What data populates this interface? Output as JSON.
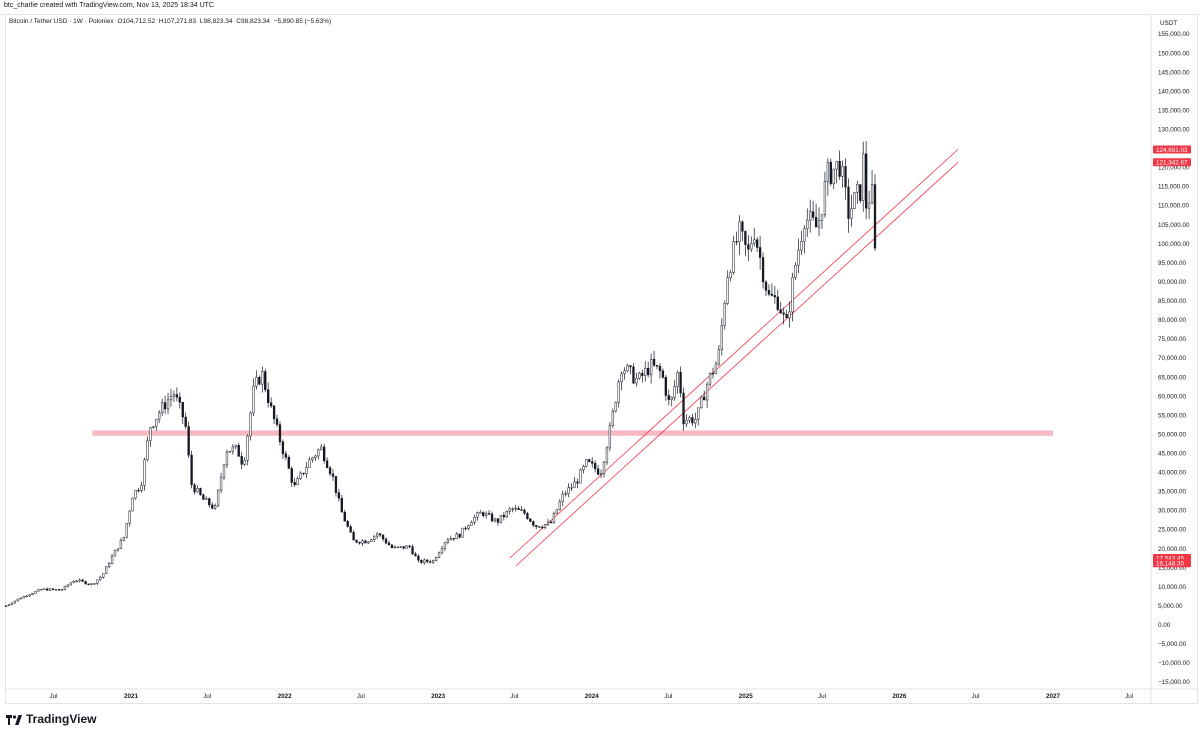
{
  "header": {
    "text": "btc_charlie created with TradingView.com, Nov 13, 2025 18:34 UTC"
  },
  "legend": {
    "symbol": "Bitcoin / Tether USD · 1W · Poloniex",
    "open": "O104,712.52",
    "high": "H107,271.83",
    "low": "L98,823.34",
    "close": "C98,823.34",
    "change": "−5,890.85 (−5.63%)"
  },
  "footer": {
    "brand": "TradingView"
  },
  "colors": {
    "candle": "#131722",
    "trend": "#f23645",
    "zone": "#f7a1ad",
    "badge": "#f23645",
    "grid": "#e0e3eb"
  },
  "chart_data": {
    "type": "candlestick",
    "title": "Bitcoin / Tether USD · 1W · Poloniex",
    "currency": "USDT",
    "ylim": [
      -15000,
      155000
    ],
    "y_ticks": [
      "155,000.00",
      "150,000.00",
      "145,000.00",
      "140,000.00",
      "135,000.00",
      "130,000.00",
      "125,000.00",
      "120,000.00",
      "115,000.00",
      "110,000.00",
      "105,000.00",
      "100,000.00",
      "95,000.00",
      "90,000.00",
      "85,000.00",
      "80,000.00",
      "75,000.00",
      "70,000.00",
      "65,000.00",
      "60,000.00",
      "55,000.00",
      "50,000.00",
      "45,000.00",
      "40,000.00",
      "35,000.00",
      "30,000.00",
      "25,000.00",
      "20,000.00",
      "15,000.00",
      "10,000.00",
      "5,000.00",
      "0.00",
      "−5,000.00",
      "−10,000.00",
      "−15,000.00"
    ],
    "x_ticks": [
      {
        "label": "Jul",
        "date": "2020-07-01",
        "year": false
      },
      {
        "label": "2021",
        "date": "2021-01-01",
        "year": true
      },
      {
        "label": "Jul",
        "date": "2021-07-01",
        "year": false
      },
      {
        "label": "2022",
        "date": "2022-01-01",
        "year": true
      },
      {
        "label": "Jul",
        "date": "2022-07-01",
        "year": false
      },
      {
        "label": "2023",
        "date": "2023-01-01",
        "year": true
      },
      {
        "label": "Jul",
        "date": "2023-07-01",
        "year": false
      },
      {
        "label": "2024",
        "date": "2024-01-01",
        "year": true
      },
      {
        "label": "Jul",
        "date": "2024-07-01",
        "year": false
      },
      {
        "label": "2025",
        "date": "2025-01-01",
        "year": true
      },
      {
        "label": "Jul",
        "date": "2025-07-01",
        "year": false
      },
      {
        "label": "2026",
        "date": "2026-01-01",
        "year": true
      },
      {
        "label": "Jul",
        "date": "2026-07-01",
        "year": false
      },
      {
        "label": "2027",
        "date": "2027-01-01",
        "year": true
      },
      {
        "label": "Jul",
        "date": "2027-07-01",
        "year": false
      }
    ],
    "price_badges": [
      {
        "label": "124,691.03",
        "value": 124691.03
      },
      {
        "label": "121,342.67",
        "value": 121342.67
      },
      {
        "label": "17,543.45",
        "value": 17543.45
      },
      {
        "label": "16,148.30",
        "value": 16148.3
      }
    ],
    "support_zone": {
      "from": "2020-10-01",
      "to": "2027-01-01",
      "low": 49600,
      "high": 51000
    },
    "trend_lines": [
      {
        "start": [
          "2023-06-20",
          17500
        ],
        "end": [
          "2026-05-20",
          124700
        ]
      },
      {
        "start": [
          "2023-07-05",
          15500
        ],
        "end": [
          "2026-05-20",
          121300
        ]
      }
    ],
    "series_anchors": [
      [
        "2020-03-10",
        5000
      ],
      [
        "2020-04-15",
        7200
      ],
      [
        "2020-06-01",
        9300
      ],
      [
        "2020-07-20",
        9200
      ],
      [
        "2020-08-20",
        11800
      ],
      [
        "2020-09-30",
        10600
      ],
      [
        "2020-10-25",
        13000
      ],
      [
        "2020-11-20",
        18500
      ],
      [
        "2020-12-15",
        23000
      ],
      [
        "2021-01-05",
        34000
      ],
      [
        "2021-01-25",
        37000
      ],
      [
        "2021-02-15",
        52000
      ],
      [
        "2021-03-10",
        56000
      ],
      [
        "2021-04-12",
        61000
      ],
      [
        "2021-05-10",
        53000
      ],
      [
        "2021-05-24",
        37000
      ],
      [
        "2021-06-20",
        33000
      ],
      [
        "2021-07-20",
        30500
      ],
      [
        "2021-08-15",
        46000
      ],
      [
        "2021-09-10",
        46000
      ],
      [
        "2021-09-25",
        42000
      ],
      [
        "2021-10-20",
        62000
      ],
      [
        "2021-11-08",
        66000
      ],
      [
        "2021-12-01",
        56000
      ],
      [
        "2021-12-25",
        47000
      ],
      [
        "2022-01-24",
        36000
      ],
      [
        "2022-03-01",
        43000
      ],
      [
        "2022-03-28",
        46500
      ],
      [
        "2022-04-25",
        39000
      ],
      [
        "2022-05-15",
        30000
      ],
      [
        "2022-06-13",
        22000
      ],
      [
        "2022-07-15",
        22000
      ],
      [
        "2022-08-10",
        24000
      ],
      [
        "2022-09-15",
        20000
      ],
      [
        "2022-10-25",
        20500
      ],
      [
        "2022-11-15",
        16500
      ],
      [
        "2022-12-20",
        16800
      ],
      [
        "2023-01-20",
        22500
      ],
      [
        "2023-02-20",
        23500
      ],
      [
        "2023-03-20",
        27500
      ],
      [
        "2023-04-15",
        29500
      ],
      [
        "2023-05-20",
        27000
      ],
      [
        "2023-06-25",
        30500
      ],
      [
        "2023-07-25",
        29300
      ],
      [
        "2023-08-20",
        26000
      ],
      [
        "2023-09-25",
        26500
      ],
      [
        "2023-10-25",
        34000
      ],
      [
        "2023-11-25",
        37500
      ],
      [
        "2023-12-20",
        42500
      ],
      [
        "2024-01-22",
        40000
      ],
      [
        "2024-02-15",
        52000
      ],
      [
        "2024-03-11",
        68000
      ],
      [
        "2024-04-20",
        64000
      ],
      [
        "2024-05-20",
        68000
      ],
      [
        "2024-06-15",
        66000
      ],
      [
        "2024-07-05",
        57000
      ],
      [
        "2024-07-25",
        67000
      ],
      [
        "2024-08-06",
        54000
      ],
      [
        "2024-09-06",
        54000
      ],
      [
        "2024-09-30",
        63000
      ],
      [
        "2024-10-28",
        70000
      ],
      [
        "2024-11-18",
        92000
      ],
      [
        "2024-12-16",
        103000
      ],
      [
        "2025-01-06",
        97000
      ],
      [
        "2025-01-20",
        104000
      ],
      [
        "2025-02-24",
        86000
      ],
      [
        "2025-03-20",
        85000
      ],
      [
        "2025-04-07",
        78000
      ],
      [
        "2025-04-28",
        94000
      ],
      [
        "2025-05-20",
        107000
      ],
      [
        "2025-06-20",
        104000
      ],
      [
        "2025-07-14",
        118000
      ],
      [
        "2025-08-13",
        121000
      ],
      [
        "2025-09-01",
        108000
      ],
      [
        "2025-09-30",
        114000
      ],
      [
        "2025-10-06",
        123500
      ],
      [
        "2025-10-13",
        110000
      ],
      [
        "2025-10-27",
        114000
      ],
      [
        "2025-11-03",
        104700
      ],
      [
        "2025-11-10",
        98823
      ]
    ]
  }
}
